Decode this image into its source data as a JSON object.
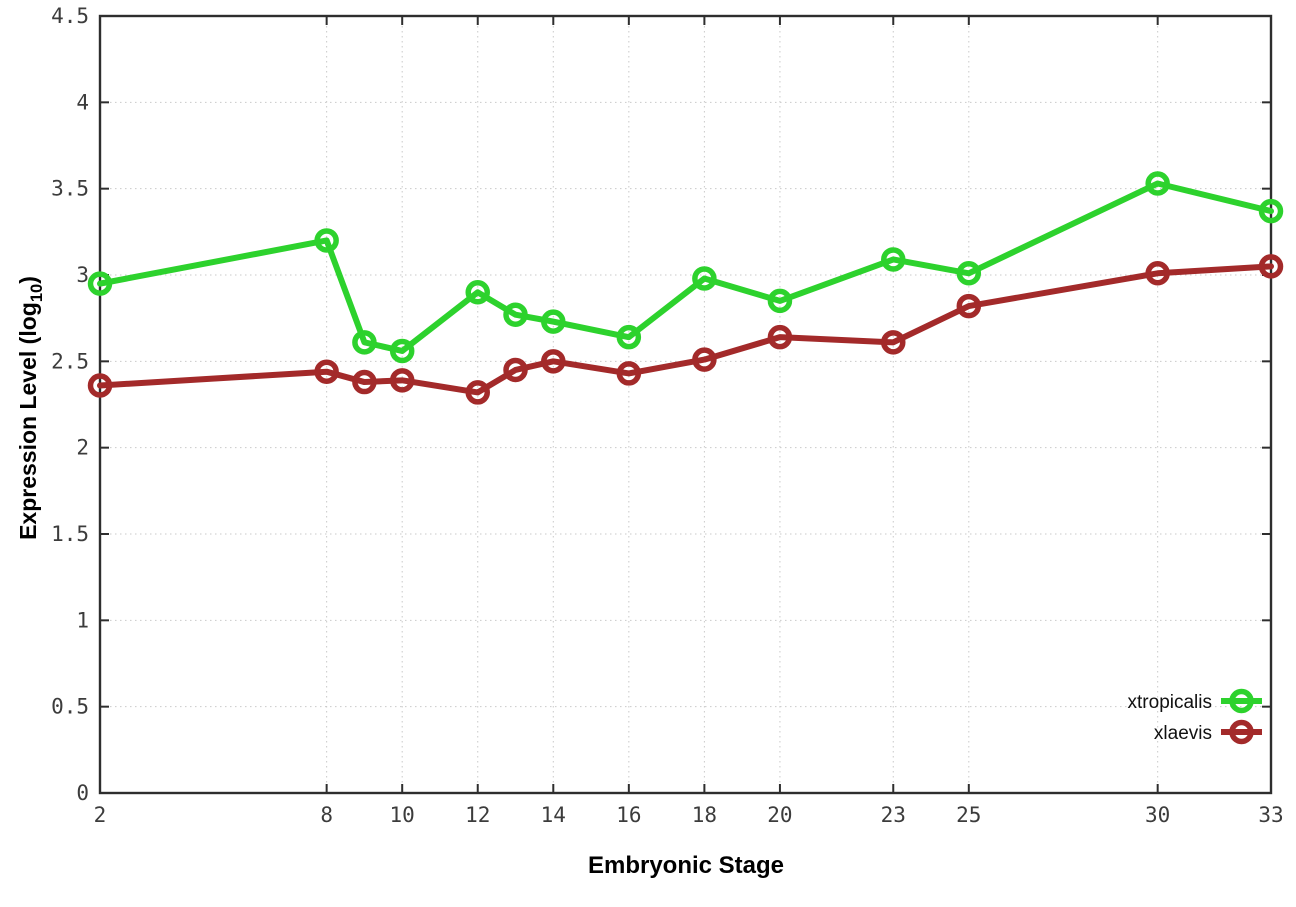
{
  "chart_data": {
    "type": "line",
    "title": "",
    "xlabel": "Embryonic Stage",
    "ylabel": "Expression Level (log10)",
    "ylabel_parts": {
      "main": "Expression Level (log",
      "sub": "10",
      "end": ")"
    },
    "x": [
      2,
      8,
      9,
      10,
      12,
      13,
      14,
      16,
      18,
      20,
      23,
      25,
      30,
      33
    ],
    "x_ticks": [
      2,
      8,
      10,
      12,
      14,
      16,
      18,
      20,
      23,
      25,
      30,
      33
    ],
    "y_ticks": [
      0,
      0.5,
      1,
      1.5,
      2,
      2.5,
      3,
      3.5,
      4,
      4.5
    ],
    "xlim": [
      2,
      33
    ],
    "ylim": [
      0,
      4.5
    ],
    "grid": true,
    "legend_position": "bottom-right",
    "series": [
      {
        "name": "xtropicalis",
        "color": "#2dd22d",
        "values": [
          2.95,
          3.2,
          2.61,
          2.56,
          2.9,
          2.77,
          2.73,
          2.64,
          2.98,
          2.85,
          3.09,
          3.01,
          3.53,
          3.37
        ]
      },
      {
        "name": "xlaevis",
        "color": "#a32a2a",
        "values": [
          2.36,
          2.44,
          2.38,
          2.39,
          2.32,
          2.45,
          2.5,
          2.43,
          2.51,
          2.64,
          2.61,
          2.82,
          3.01,
          3.05
        ]
      }
    ],
    "style": {
      "grid_color": "#c9c9c9",
      "border_color": "#2e2e2e",
      "background": "#ffffff"
    }
  }
}
